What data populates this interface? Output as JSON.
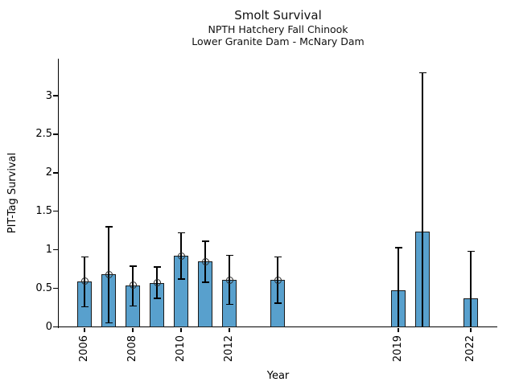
{
  "chart_data": {
    "type": "bar",
    "title": "Smolt Survival",
    "subtitle_lines": [
      "NPTH Hatchery Fall Chinook",
      "Lower Granite Dam - McNary Dam"
    ],
    "xlabel": "Year",
    "ylabel": "PIT-Tag Survival",
    "ylim": [
      0,
      3.48
    ],
    "grid": false,
    "legend": "none",
    "error_bars": "95% CI whiskers with caps; lower whiskers for 2019, 2020, 2022 extend to 0 with no cap",
    "yticks": [
      {
        "value": 0,
        "label": "0"
      },
      {
        "value": 0.5,
        "label": "0.5"
      },
      {
        "value": 1,
        "label": "1"
      },
      {
        "value": 1.5,
        "label": "1.5"
      },
      {
        "value": 2,
        "label": "2"
      },
      {
        "value": 2.5,
        "label": "2.5"
      },
      {
        "value": 3,
        "label": "3"
      }
    ],
    "xticks": [
      {
        "value": 2006,
        "label": "2006"
      },
      {
        "value": 2008,
        "label": "2008"
      },
      {
        "value": 2010,
        "label": "2010"
      },
      {
        "value": 2012,
        "label": "2012"
      },
      {
        "value": 2019,
        "label": "2019"
      },
      {
        "value": 2022,
        "label": "2022"
      }
    ],
    "series": [
      {
        "name": "PIT-Tag Survival",
        "bars": [
          {
            "year": 2006,
            "value": 0.59,
            "ci_low": 0.26,
            "ci_high": 0.91,
            "point_marker": true
          },
          {
            "year": 2007,
            "value": 0.68,
            "ci_low": 0.05,
            "ci_high": 1.3,
            "point_marker": true
          },
          {
            "year": 2008,
            "value": 0.54,
            "ci_low": 0.27,
            "ci_high": 0.79,
            "point_marker": true
          },
          {
            "year": 2009,
            "value": 0.57,
            "ci_low": 0.37,
            "ci_high": 0.78,
            "point_marker": true
          },
          {
            "year": 2010,
            "value": 0.92,
            "ci_low": 0.62,
            "ci_high": 1.22,
            "point_marker": true
          },
          {
            "year": 2011,
            "value": 0.85,
            "ci_low": 0.58,
            "ci_high": 1.11,
            "point_marker": true
          },
          {
            "year": 2012,
            "value": 0.61,
            "ci_low": 0.29,
            "ci_high": 0.93,
            "point_marker": true
          },
          {
            "year": 2014,
            "value": 0.61,
            "ci_low": 0.31,
            "ci_high": 0.91,
            "point_marker": true
          },
          {
            "year": 2019,
            "value": 0.47,
            "ci_low": 0.0,
            "ci_high": 1.03,
            "point_marker": false
          },
          {
            "year": 2020,
            "value": 1.24,
            "ci_low": 0.0,
            "ci_high": 3.3,
            "point_marker": false
          },
          {
            "year": 2022,
            "value": 0.37,
            "ci_low": 0.0,
            "ci_high": 0.98,
            "point_marker": false
          }
        ]
      }
    ],
    "colors": {
      "bar_fill": "#58a0cd",
      "bar_edge": "#1a1a1a",
      "error_bar": "#000000",
      "text": "#000000",
      "background": "#ffffff"
    }
  }
}
